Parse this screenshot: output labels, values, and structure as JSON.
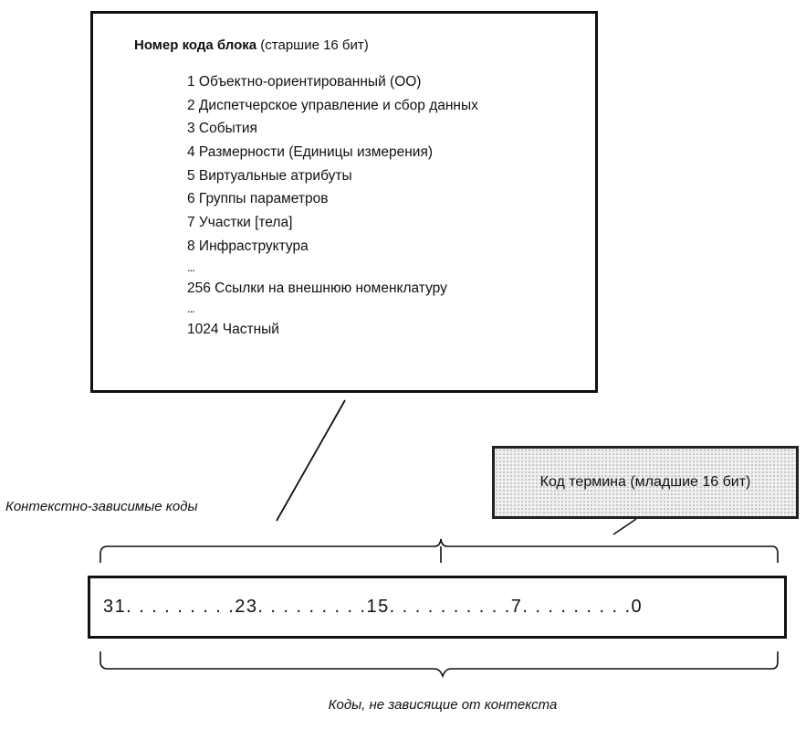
{
  "block_code": {
    "title_bold": "Номер кода блока",
    "title_suffix": " (старшие 16 бит)",
    "items": [
      "1 Объектно-ориентированный (ОО)",
      "2 Диспетчерское управление и сбор данных",
      "3 События",
      "4 Размерности (Единицы измерения)",
      "5 Виртуальные атрибуты",
      "6 Группы параметров",
      "7 Участки [тела]",
      "8 Инфраструктура",
      "...",
      "256 Ссылки на внешнюю номенклатуру",
      "...",
      "1024 Частный"
    ]
  },
  "term_code": {
    "label": "Код термина (младшие 16 бит)"
  },
  "context_dependent_label": "Контекстно-зависимые коды",
  "bit_scale": "31. . . . . . . . .23. . . . . . . . .15. . . . . . . . . .7. . . . . . . . .0",
  "context_independent_label": "Коды, не зависящие от контекста"
}
